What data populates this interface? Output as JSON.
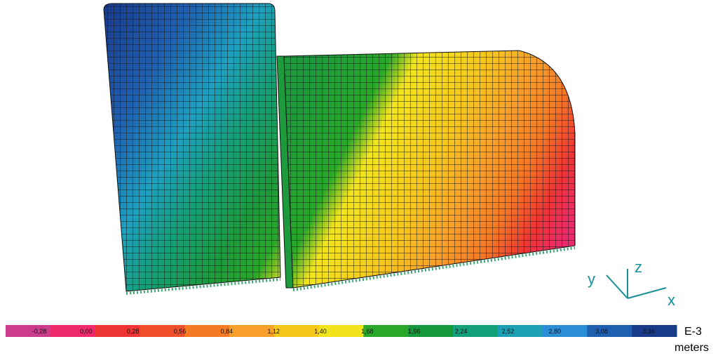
{
  "legend": {
    "labels": [
      "-0,28",
      "0,00",
      "0,28",
      "0,56",
      "0,84",
      "1,12",
      "1,40",
      "1,68",
      "1,96",
      "2,24",
      "2,52",
      "2,80",
      "3,08",
      "3,36"
    ],
    "colors": [
      "#cc3c8c",
      "#ee2a6a",
      "#ee3434",
      "#f0502c",
      "#f47a24",
      "#f8a02a",
      "#f6c81c",
      "#f2e41c",
      "#2aa82a",
      "#16983c",
      "#14a07a",
      "#1ea0b4",
      "#2a8ed6",
      "#2060b0",
      "#1a3a8a"
    ],
    "exponent": "E-3",
    "unit": "meters"
  },
  "axes": {
    "x": "x",
    "y": "y",
    "z": "z"
  }
}
